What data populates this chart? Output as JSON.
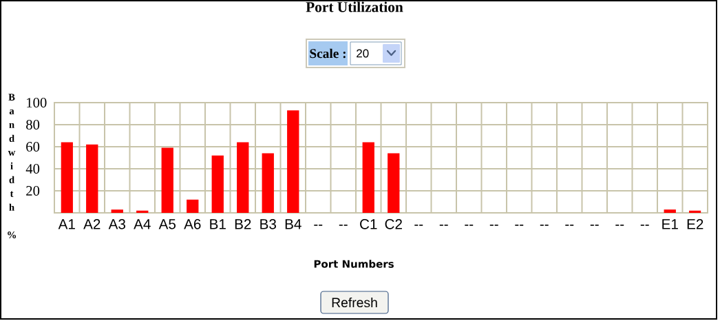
{
  "chart_data": {
    "type": "bar",
    "title": "Port Utilization",
    "xlabel": "Port Numbers",
    "ylabel": "Bandwidth %",
    "categories": [
      "A1",
      "A2",
      "A3",
      "A4",
      "A5",
      "A6",
      "B1",
      "B2",
      "B3",
      "B4",
      "--",
      "--",
      "C1",
      "C2",
      "--",
      "--",
      "--",
      "--",
      "--",
      "--",
      "--",
      "--",
      "--",
      "--",
      "E1",
      "E2"
    ],
    "values": [
      64,
      62,
      3,
      2,
      59,
      12,
      52,
      64,
      54,
      93,
      null,
      null,
      64,
      54,
      null,
      null,
      null,
      null,
      null,
      null,
      null,
      null,
      null,
      null,
      3,
      2
    ],
    "color": "#ff0000",
    "ylim": [
      0,
      100
    ],
    "yticks": [
      20,
      40,
      60,
      80,
      100
    ],
    "grid": true,
    "annotations": [
      "Scale :",
      "20",
      "Refresh"
    ]
  }
}
